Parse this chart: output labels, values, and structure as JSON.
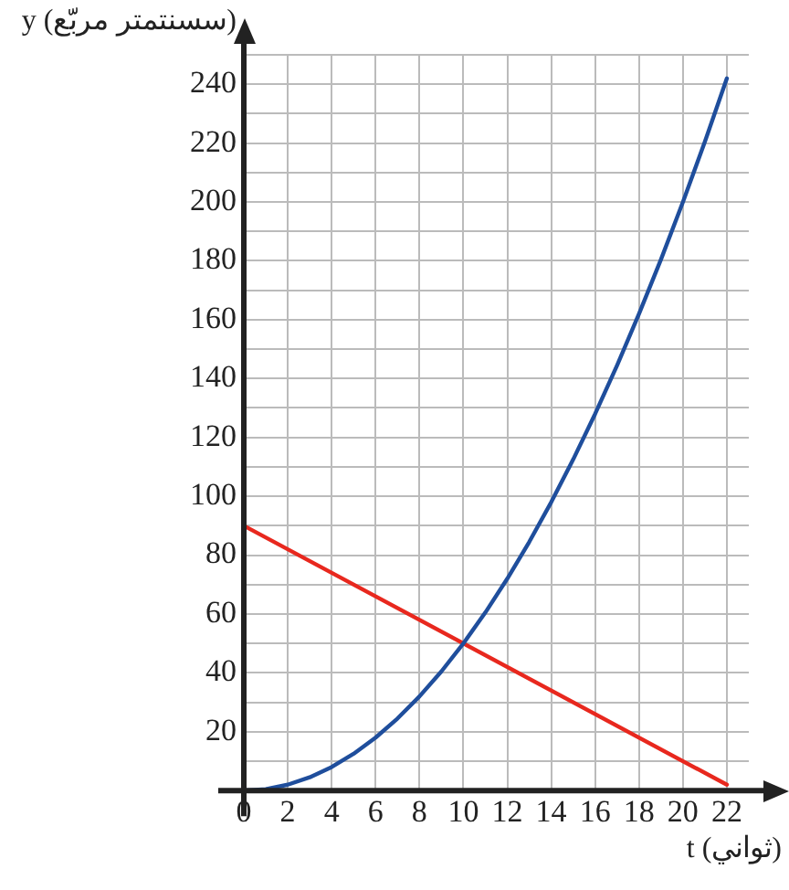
{
  "chart_data": {
    "type": "line",
    "xlabel": "t (ثواني)",
    "ylabel": "y (سسنتمتر مربّع)",
    "xlim": [
      0,
      23
    ],
    "ylim": [
      0,
      250
    ],
    "xticks": [
      0,
      2,
      4,
      6,
      8,
      10,
      12,
      14,
      16,
      18,
      20,
      22
    ],
    "yticks": [
      {
        "value": 0,
        "label": null
      },
      {
        "value": 10,
        "label": null
      },
      20,
      {
        "value": 30,
        "label": null
      },
      40,
      {
        "value": 50,
        "label": null
      },
      60,
      {
        "value": 70,
        "label": null
      },
      80,
      {
        "value": 90,
        "label": null
      },
      100,
      {
        "value": 110,
        "label": null
      },
      120,
      {
        "value": 130,
        "label": null
      },
      140,
      {
        "value": 150,
        "label": null
      },
      160,
      {
        "value": 170,
        "label": null
      },
      180,
      {
        "value": 190,
        "label": null
      },
      200,
      {
        "value": 210,
        "label": null
      },
      220,
      {
        "value": 230,
        "label": null
      },
      240,
      {
        "value": 250,
        "label": null
      }
    ],
    "grid": true,
    "legend": false,
    "marker": "none",
    "line_style": "solid",
    "series": [
      {
        "color": "#1f4e9c",
        "x": [
          0,
          1,
          2,
          3,
          4,
          5,
          6,
          7,
          8,
          9,
          10,
          11,
          12,
          13,
          14,
          15,
          16,
          17,
          18,
          19,
          20,
          21,
          22
        ],
        "values": [
          0,
          0.5,
          2,
          4.5,
          8,
          12.5,
          18,
          24.5,
          32,
          40.5,
          50,
          60.5,
          72,
          84.5,
          98,
          112.5,
          128,
          144.5,
          162,
          180.5,
          200,
          220.5,
          242
        ]
      },
      {
        "color": "#e8281e",
        "x": [
          0,
          22
        ],
        "values": [
          90,
          2
        ]
      }
    ]
  }
}
